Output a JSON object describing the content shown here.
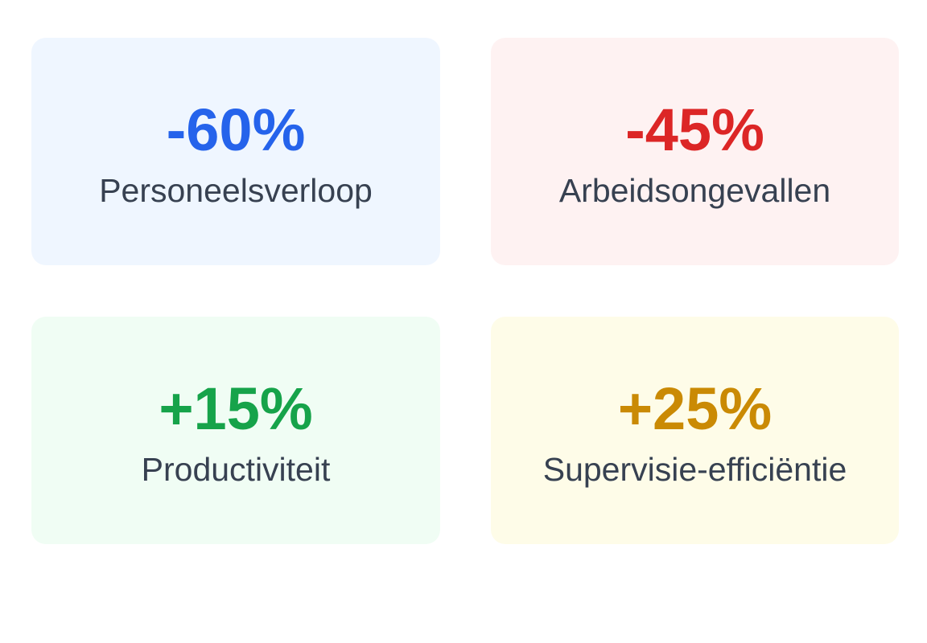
{
  "cards": [
    {
      "value": "-60%",
      "label": "Personeelsverloop"
    },
    {
      "value": "-45%",
      "label": "Arbeidsongevallen"
    },
    {
      "value": "+15%",
      "label": "Productiviteit"
    },
    {
      "value": "+25%",
      "label": "Supervisie-efficiëntie"
    }
  ]
}
